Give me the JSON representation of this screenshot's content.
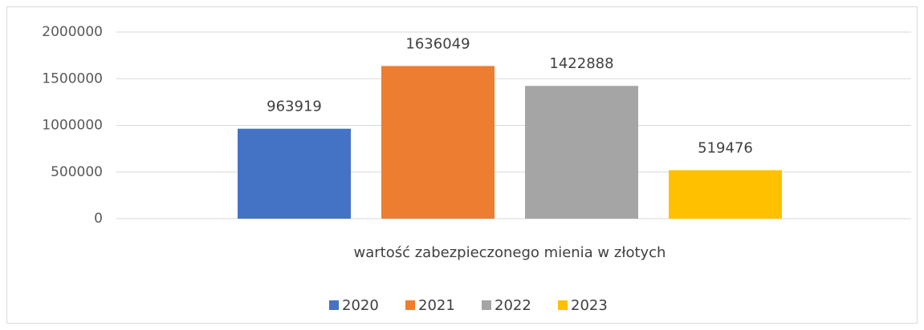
{
  "chart_data": {
    "type": "bar",
    "categories": [
      "wartość zabezpieczonego mienia w złotych"
    ],
    "series": [
      {
        "name": "2020",
        "color": "#4472c4",
        "values": [
          963919
        ]
      },
      {
        "name": "2021",
        "color": "#ed7d31",
        "values": [
          1636049
        ]
      },
      {
        "name": "2022",
        "color": "#a5a5a5",
        "values": [
          1422888
        ]
      },
      {
        "name": "2023",
        "color": "#ffc000",
        "values": [
          519476
        ]
      }
    ],
    "ylim": [
      0,
      2000000
    ],
    "yticks": [
      0,
      500000,
      1000000,
      1500000,
      2000000
    ],
    "grid": true,
    "legend": "bottom"
  }
}
